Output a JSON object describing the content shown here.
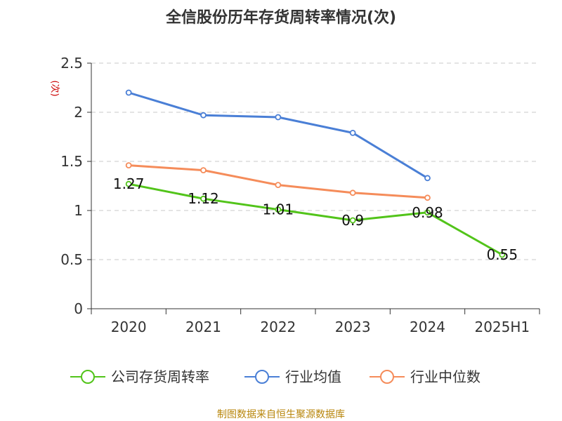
{
  "chart_data": {
    "type": "line",
    "title": "全信股份历年存货周转率情况(次)",
    "ylabel": "(次)",
    "xlabel": "",
    "categories": [
      "2020",
      "2021",
      "2022",
      "2023",
      "2024",
      "2025H1"
    ],
    "ylim": [
      0,
      2.5
    ],
    "yticks": [
      "0",
      "0.5",
      "1",
      "1.5",
      "2",
      "2.5"
    ],
    "grid": true,
    "legend_position": "bottom",
    "series": [
      {
        "name": "公司存货周转率",
        "color": "#52c41a",
        "values": [
          1.27,
          1.12,
          1.01,
          0.9,
          0.98,
          0.55
        ],
        "labels": [
          "1.27",
          "1.12",
          "1.01",
          "0.9",
          "0.98",
          "0.55"
        ]
      },
      {
        "name": "行业均值",
        "color": "#4a7fd6",
        "values": [
          2.2,
          1.97,
          1.95,
          1.79,
          1.33,
          null
        ]
      },
      {
        "name": "行业中位数",
        "color": "#f58c5a",
        "values": [
          1.46,
          1.41,
          1.26,
          1.18,
          1.13,
          null
        ]
      }
    ]
  },
  "source": "制图数据来自恒生聚源数据库"
}
